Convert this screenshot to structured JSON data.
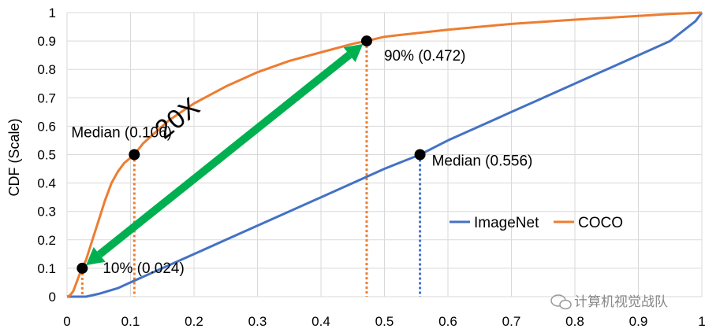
{
  "chart_data": {
    "type": "line",
    "title": "",
    "xlabel": "",
    "ylabel": "CDF (Scale)",
    "xlim": [
      0,
      1
    ],
    "ylim": [
      0,
      1
    ],
    "xticks": [
      "0",
      "0.1",
      "0.2",
      "0.3",
      "0.4",
      "0.5",
      "0.6",
      "0.7",
      "0.8",
      "0.9",
      "1"
    ],
    "yticks": [
      "0",
      "0.1",
      "0.2",
      "0.3",
      "0.4",
      "0.5",
      "0.6",
      "0.7",
      "0.8",
      "0.9",
      "1"
    ],
    "grid": true,
    "legend_position": "center-right",
    "series": [
      {
        "name": "ImageNet",
        "color": "#4472C4",
        "x": [
          0.0,
          0.02,
          0.03,
          0.05,
          0.08,
          0.1,
          0.15,
          0.2,
          0.25,
          0.3,
          0.35,
          0.4,
          0.45,
          0.5,
          0.556,
          0.6,
          0.65,
          0.7,
          0.75,
          0.8,
          0.85,
          0.9,
          0.95,
          0.99,
          1.0
        ],
        "y": [
          0.0,
          0.0,
          0.0,
          0.01,
          0.03,
          0.05,
          0.1,
          0.15,
          0.2,
          0.25,
          0.3,
          0.35,
          0.4,
          0.45,
          0.5,
          0.55,
          0.6,
          0.65,
          0.7,
          0.75,
          0.8,
          0.85,
          0.9,
          0.97,
          1.0
        ]
      },
      {
        "name": "COCO",
        "color": "#ED7D31",
        "x": [
          0.0,
          0.005,
          0.01,
          0.015,
          0.02,
          0.024,
          0.03,
          0.04,
          0.05,
          0.06,
          0.07,
          0.08,
          0.09,
          0.106,
          0.12,
          0.14,
          0.16,
          0.18,
          0.2,
          0.25,
          0.3,
          0.35,
          0.4,
          0.45,
          0.472,
          0.5,
          0.6,
          0.7,
          0.8,
          0.9,
          0.95,
          1.0
        ],
        "y": [
          0.0,
          0.005,
          0.02,
          0.05,
          0.08,
          0.1,
          0.13,
          0.2,
          0.27,
          0.34,
          0.4,
          0.44,
          0.47,
          0.5,
          0.54,
          0.58,
          0.62,
          0.65,
          0.68,
          0.74,
          0.79,
          0.83,
          0.86,
          0.89,
          0.9,
          0.915,
          0.94,
          0.96,
          0.975,
          0.988,
          0.995,
          1.0
        ]
      }
    ],
    "markers": [
      {
        "x": 0.024,
        "y": 0.1,
        "label": "10% (0.024)",
        "drop_color": "#ED7D31"
      },
      {
        "x": 0.106,
        "y": 0.5,
        "label": "Median (0.106)",
        "drop_color": "#ED7D31"
      },
      {
        "x": 0.472,
        "y": 0.9,
        "label": "90% (0.472)",
        "drop_color": "#ED7D31"
      },
      {
        "x": 0.556,
        "y": 0.5,
        "label": "Median (0.556)",
        "drop_color": "#4472C4"
      }
    ],
    "arrow": {
      "from": [
        0.024,
        0.1
      ],
      "to": [
        0.472,
        0.9
      ],
      "label": "20X",
      "color": "#00B050"
    }
  },
  "watermark": "计算机视觉战队"
}
